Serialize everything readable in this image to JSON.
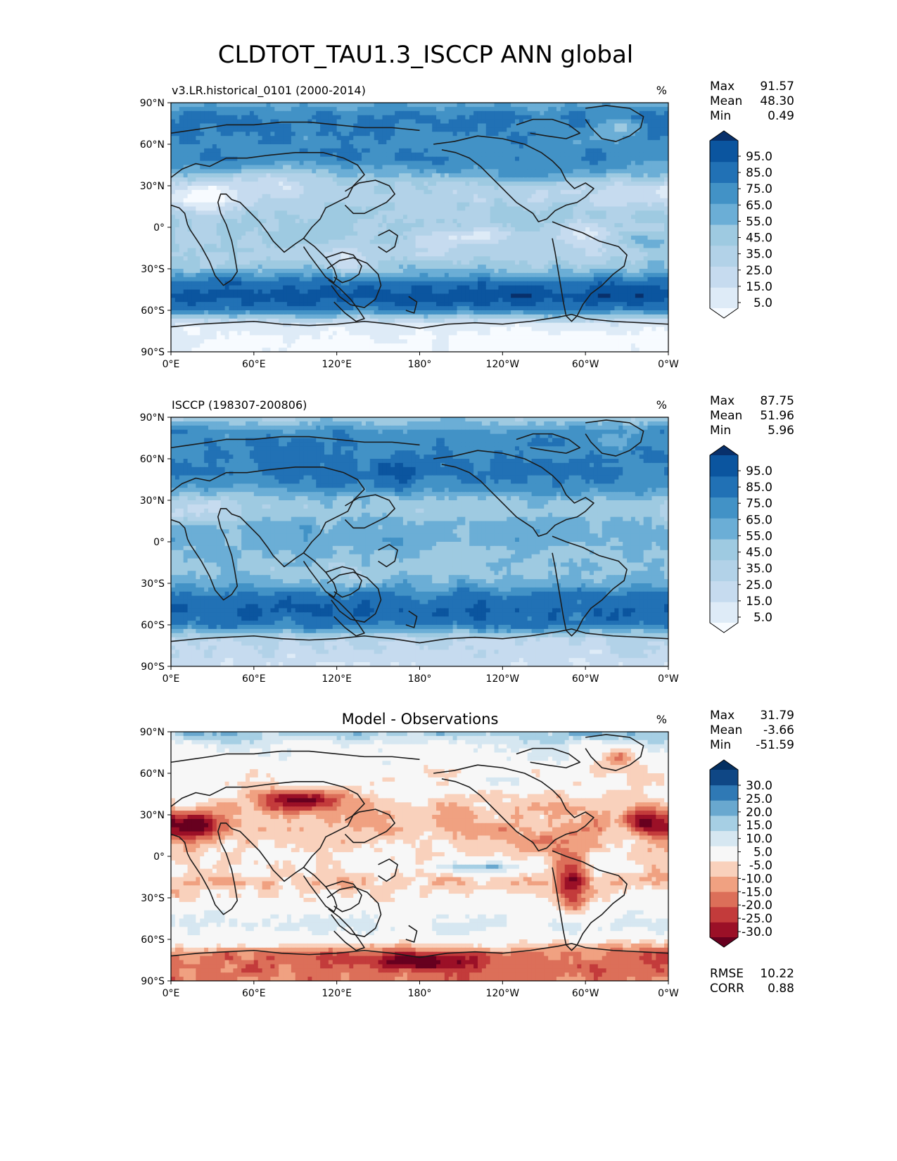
{
  "figure": {
    "title": "CLDTOT_TAU1.3_ISCCP ANN global"
  },
  "colors": {
    "blues": [
      "#f7fbff",
      "#deebf7",
      "#c6dbef",
      "#b2d2e8",
      "#9ecae1",
      "#6baed6",
      "#4292c6",
      "#2171b5",
      "#0b559f",
      "#08306b"
    ],
    "rdbu": [
      "#67001f",
      "#9b1027",
      "#c33b3b",
      "#dc6f59",
      "#f0a181",
      "#f9d1bc",
      "#f7f7f7",
      "#d6e7f1",
      "#a6cfe4",
      "#69a8cf",
      "#2f79b5",
      "#0f4785",
      "#053061"
    ],
    "coast": "#1a1a1a"
  },
  "chart_data": [
    {
      "type": "heatmap",
      "panel": "model",
      "title": "v3.LR.historical_0101 (2000-2014)",
      "units": "%",
      "stats": [
        {
          "label": "Max",
          "value": "91.57"
        },
        {
          "label": "Mean",
          "value": "48.30"
        },
        {
          "label": "Min",
          "value": "0.49"
        }
      ],
      "colorbar_ticks": [
        "95.0",
        "85.0",
        "75.0",
        "65.0",
        "55.0",
        "45.0",
        "35.0",
        "25.0",
        "15.0",
        "5.0"
      ],
      "colorbar_levels": [
        0,
        10,
        20,
        30,
        40,
        50,
        60,
        70,
        80,
        90,
        100
      ],
      "lat_ticks": [
        "90°N",
        "60°N",
        "30°N",
        "0°",
        "30°S",
        "60°S",
        "90°S"
      ],
      "lon_ticks": [
        "0°E",
        "60°E",
        "120°E",
        "180°",
        "120°W",
        "60°W",
        "0°W"
      ],
      "xlim": [
        0,
        360
      ],
      "ylim": [
        -90,
        90
      ],
      "zonal_profile": {
        "lat": [
          90,
          80,
          70,
          60,
          50,
          40,
          30,
          20,
          10,
          0,
          -10,
          -20,
          -30,
          -40,
          -50,
          -60,
          -70,
          -80,
          -90
        ],
        "value": [
          55,
          72,
          70,
          66,
          70,
          58,
          38,
          34,
          44,
          42,
          42,
          34,
          46,
          76,
          86,
          70,
          16,
          8,
          6
        ]
      }
    },
    {
      "type": "heatmap",
      "panel": "obs",
      "title": "ISCCP (198307-200806)",
      "units": "%",
      "stats": [
        {
          "label": "Max",
          "value": "87.75"
        },
        {
          "label": "Mean",
          "value": "51.96"
        },
        {
          "label": "Min",
          "value": "5.96"
        }
      ],
      "colorbar_ticks": [
        "95.0",
        "85.0",
        "75.0",
        "65.0",
        "55.0",
        "45.0",
        "35.0",
        "25.0",
        "15.0",
        "5.0"
      ],
      "colorbar_levels": [
        0,
        10,
        20,
        30,
        40,
        50,
        60,
        70,
        80,
        90,
        100
      ],
      "lat_ticks": [
        "90°N",
        "60°N",
        "30°N",
        "0°",
        "30°S",
        "60°S",
        "90°S"
      ],
      "lon_ticks": [
        "0°E",
        "60°E",
        "120°E",
        "180°",
        "120°W",
        "60°W",
        "0°W"
      ],
      "xlim": [
        0,
        360
      ],
      "ylim": [
        -90,
        90
      ],
      "zonal_profile": {
        "lat": [
          90,
          80,
          70,
          60,
          50,
          40,
          30,
          20,
          10,
          0,
          -10,
          -20,
          -30,
          -40,
          -50,
          -60,
          -70,
          -80,
          -90
        ],
        "value": [
          40,
          65,
          68,
          70,
          72,
          64,
          48,
          44,
          54,
          56,
          52,
          46,
          55,
          74,
          80,
          72,
          32,
          26,
          22
        ]
      }
    },
    {
      "type": "heatmap",
      "panel": "diff",
      "title": "Model - Observations",
      "units": "%",
      "stats": [
        {
          "label": "Max",
          "value": "31.79"
        },
        {
          "label": "Mean",
          "value": "-3.66"
        },
        {
          "label": "Min",
          "value": "-51.59"
        }
      ],
      "metrics": [
        {
          "label": "RMSE",
          "value": "10.22"
        },
        {
          "label": "CORR",
          "value": "0.88"
        }
      ],
      "colorbar_ticks": [
        "30.0",
        "25.0",
        "20.0",
        "15.0",
        "10.0",
        "5.0",
        "-5.0",
        "-10.0",
        "-15.0",
        "-20.0",
        "-25.0",
        "-30.0"
      ],
      "colorbar_levels": [
        -35,
        -30,
        -25,
        -20,
        -15,
        -10,
        -5,
        5,
        10,
        15,
        20,
        25,
        30,
        35
      ],
      "lat_ticks": [
        "90°N",
        "60°N",
        "30°N",
        "0°",
        "30°S",
        "60°S",
        "90°S"
      ],
      "lon_ticks": [
        "0°E",
        "60°E",
        "120°E",
        "180°",
        "120°W",
        "60°W",
        "0°W"
      ],
      "xlim": [
        0,
        360
      ],
      "ylim": [
        -90,
        90
      ],
      "zonal_profile": {
        "lat": [
          90,
          80,
          70,
          60,
          50,
          40,
          30,
          20,
          10,
          0,
          -10,
          -20,
          -30,
          -40,
          -50,
          -60,
          -70,
          -80,
          -90
        ],
        "value": [
          15,
          4,
          2,
          -4,
          -2,
          -6,
          -10,
          -10,
          -6,
          -4,
          -6,
          -8,
          -4,
          2,
          6,
          0,
          -16,
          -18,
          -16
        ]
      }
    }
  ]
}
